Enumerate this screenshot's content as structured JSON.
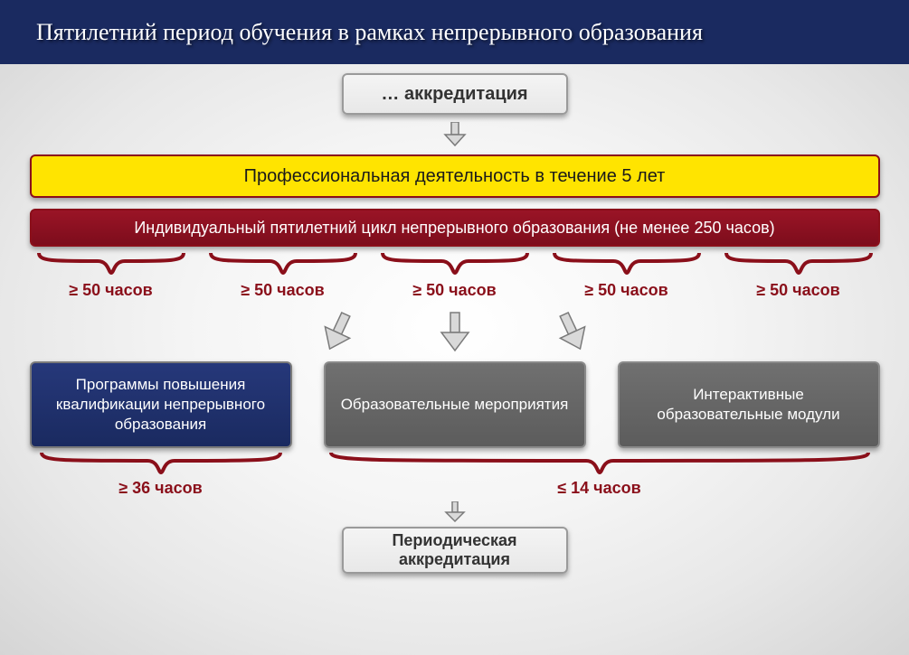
{
  "colors": {
    "header_bg": "#1a2a60",
    "header_text": "#ffffff",
    "box_light_bg": "#f4f4f4",
    "box_light_border": "#9a9a9a",
    "box_light_text": "#333333",
    "yellow_bg": "#ffe400",
    "yellow_border": "#8a0f1a",
    "yellow_text": "#1a1a1a",
    "maroon_bg": "#7d0d1c",
    "maroon_border": "#8a0f1a",
    "maroon_text": "#ffffff",
    "bracket_color": "#8a0f1a",
    "hours_text": "#8a0f1a",
    "navy_box_bg": "#1a2a60",
    "navy_box_text": "#ffffff",
    "gray_box_bg": "#5c5c5c",
    "gray_box_text": "#ffffff",
    "arrow_fill": "#d9d9d9",
    "arrow_stroke": "#7a7a7a"
  },
  "header": {
    "title": "Пятилетний период обучения в рамках непрерывного образования"
  },
  "top_box": {
    "label": "… аккредитация"
  },
  "yellow_bar": {
    "label": "Профессиональная деятельность в течение 5 лет"
  },
  "maroon_bar": {
    "label": "Индивидуальный пятилетний цикл непрерывного образования (не менее 250 часов)"
  },
  "hours_segments": [
    {
      "label": "≥ 50 часов"
    },
    {
      "label": "≥ 50 часов"
    },
    {
      "label": "≥ 50 часов"
    },
    {
      "label": "≥ 50 часов"
    },
    {
      "label": "≥ 50 часов"
    }
  ],
  "triple": [
    {
      "label": "Программы повышения квалификации непрерывного образования",
      "bg": "navy"
    },
    {
      "label": "Образовательные мероприятия",
      "bg": "gray"
    },
    {
      "label": "Интерактивные образовательные модули",
      "bg": "gray"
    }
  ],
  "bottom_hours": {
    "left": "≥ 36 часов",
    "right": "≤ 14 часов"
  },
  "final_box": {
    "label": "Периодическая аккредитация"
  }
}
